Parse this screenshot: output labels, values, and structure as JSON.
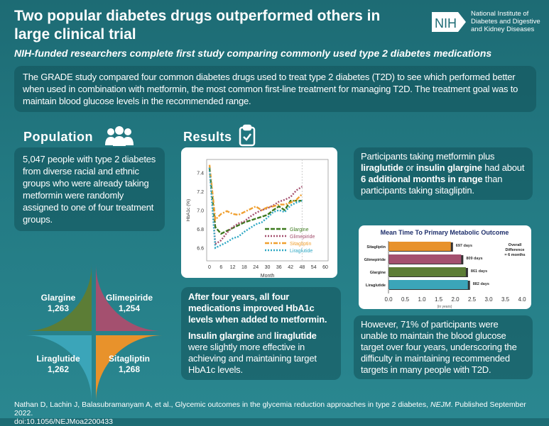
{
  "header": {
    "title": "Two popular diabetes drugs outperformed others in large clinical trial",
    "subtitle": "NIH-funded researchers complete first study comparing commonly used type 2 diabetes medications",
    "logo_text": "NIH",
    "logo_org": [
      "National Institute of",
      "Diabetes and Digestive",
      "and Kidney Diseases"
    ]
  },
  "intro": "The GRADE study compared four common diabetes drugs used to treat type 2 diabetes (T2D) to see which performed better when used in combination with metformin, the most common first-line treatment for managing T2D. The treatment goal was to maintain blood glucose levels in the recommended range.",
  "population": {
    "heading": "Population",
    "icon": "people-icon",
    "text": "5,047 people with type 2 diabetes from diverse racial and ethnic groups who were already taking metformin were randomly assigned to one of four treatment groups.",
    "groups": [
      {
        "name": "Glargine",
        "count": "1,263",
        "color": "#5c7d36"
      },
      {
        "name": "Glimepiride",
        "count": "1,254",
        "color": "#a4506f"
      },
      {
        "name": "Liraglutide",
        "count": "1,262",
        "color": "#3ba5b9"
      },
      {
        "name": "Sitagliptin",
        "count": "1,268",
        "color": "#e8922b"
      }
    ]
  },
  "results": {
    "heading": "Results",
    "icon": "clipboard-check-icon",
    "p1": "After four years, all four medications improved HbA1c levels when added to metformin.",
    "p2a": "Insulin glargine",
    "p2b": " and ",
    "p2c": "liraglutide",
    "p2d": " were slightly more effective in achieving and maintaining target HbA1c levels."
  },
  "right": {
    "p1a": "Participants taking metformin plus ",
    "p1b": "liraglutide",
    "p1c": " or ",
    "p1d": "insulin glargine",
    "p1e": " had about ",
    "p1f": "6 additional months in range",
    "p1g": " than participants taking sitagliptin.",
    "p2": "However, 71% of participants were unable to maintain the blood glucose target over four years, underscoring the difficulty in maintaining recommended targets in many people with T2D."
  },
  "citation": {
    "a": "Nathan D, Lachin J, Balasubramanyam A, et al., Glycemic outcomes in the glycemia reduction approaches in type 2 diabetes, ",
    "journal": "NEJM",
    "b": ". Published September 2022.",
    "doi": "doi:10.1056/NEJMoa2200433"
  },
  "chart_data": [
    {
      "type": "line",
      "xlabel": "Month",
      "ylabel": "HbA1c (%)",
      "xlim": [
        0,
        60
      ],
      "ylim": [
        6.5,
        7.5
      ],
      "xticks": [
        0,
        6,
        12,
        18,
        24,
        30,
        36,
        42,
        48,
        54,
        60
      ],
      "yticks": [
        6.6,
        6.8,
        7.0,
        7.2,
        7.4
      ],
      "legend": "bottom-right",
      "grid": false,
      "x": [
        0,
        3,
        6,
        9,
        12,
        15,
        18,
        21,
        24,
        27,
        30,
        33,
        36,
        39,
        42,
        45,
        48
      ],
      "series": [
        {
          "name": "Glargine",
          "color": "#3d7a1e",
          "dash": "dashed",
          "values": [
            7.45,
            6.82,
            6.75,
            6.78,
            6.81,
            6.84,
            6.87,
            6.89,
            6.91,
            6.93,
            6.95,
            7.0,
            7.04,
            7.0,
            7.1,
            7.1,
            7.1
          ]
        },
        {
          "name": "Glimepiride",
          "color": "#a4506f",
          "dash": "dotted",
          "values": [
            7.45,
            6.64,
            6.68,
            6.76,
            6.82,
            6.86,
            6.88,
            6.93,
            6.97,
            7.0,
            7.02,
            7.05,
            7.09,
            7.11,
            7.14,
            7.21,
            7.25
          ]
        },
        {
          "name": "Sitagliptin",
          "color": "#f0a030",
          "dash": "dashdot",
          "values": [
            7.48,
            6.9,
            6.96,
            6.99,
            6.96,
            6.95,
            6.98,
            7.01,
            7.04,
            7.0,
            7.03,
            7.04,
            7.06,
            7.06,
            7.08,
            7.11,
            7.17
          ]
        },
        {
          "name": "Liraglutide",
          "color": "#2fa8c4",
          "dash": "dotted",
          "values": [
            7.45,
            6.6,
            6.63,
            6.66,
            6.7,
            6.72,
            6.77,
            6.81,
            6.85,
            6.87,
            6.92,
            6.98,
            7.0,
            6.98,
            7.05,
            7.08,
            7.1
          ]
        }
      ]
    },
    {
      "type": "bar",
      "title": "Mean Time To Primary Metabolic Outcome",
      "xlabel": "(in years)",
      "xlim": [
        0,
        4
      ],
      "xticks": [
        "0.0",
        "0.5",
        "1.0",
        "1.5",
        "2.0",
        "2.5",
        "3.0",
        "3.5",
        "4.0"
      ],
      "categories": [
        "Sitagliptin",
        "Glimepiride",
        "Glargine",
        "Liraglutide"
      ],
      "values": [
        1.91,
        2.22,
        2.36,
        2.42
      ],
      "labels": [
        "697 days",
        "809 days",
        "861 days",
        "882 days"
      ],
      "colors": [
        "#e8922b",
        "#a4506f",
        "#5c7d36",
        "#3ba5b9"
      ],
      "annotation": [
        "Overall",
        "Difference",
        "= 6 months"
      ]
    }
  ]
}
